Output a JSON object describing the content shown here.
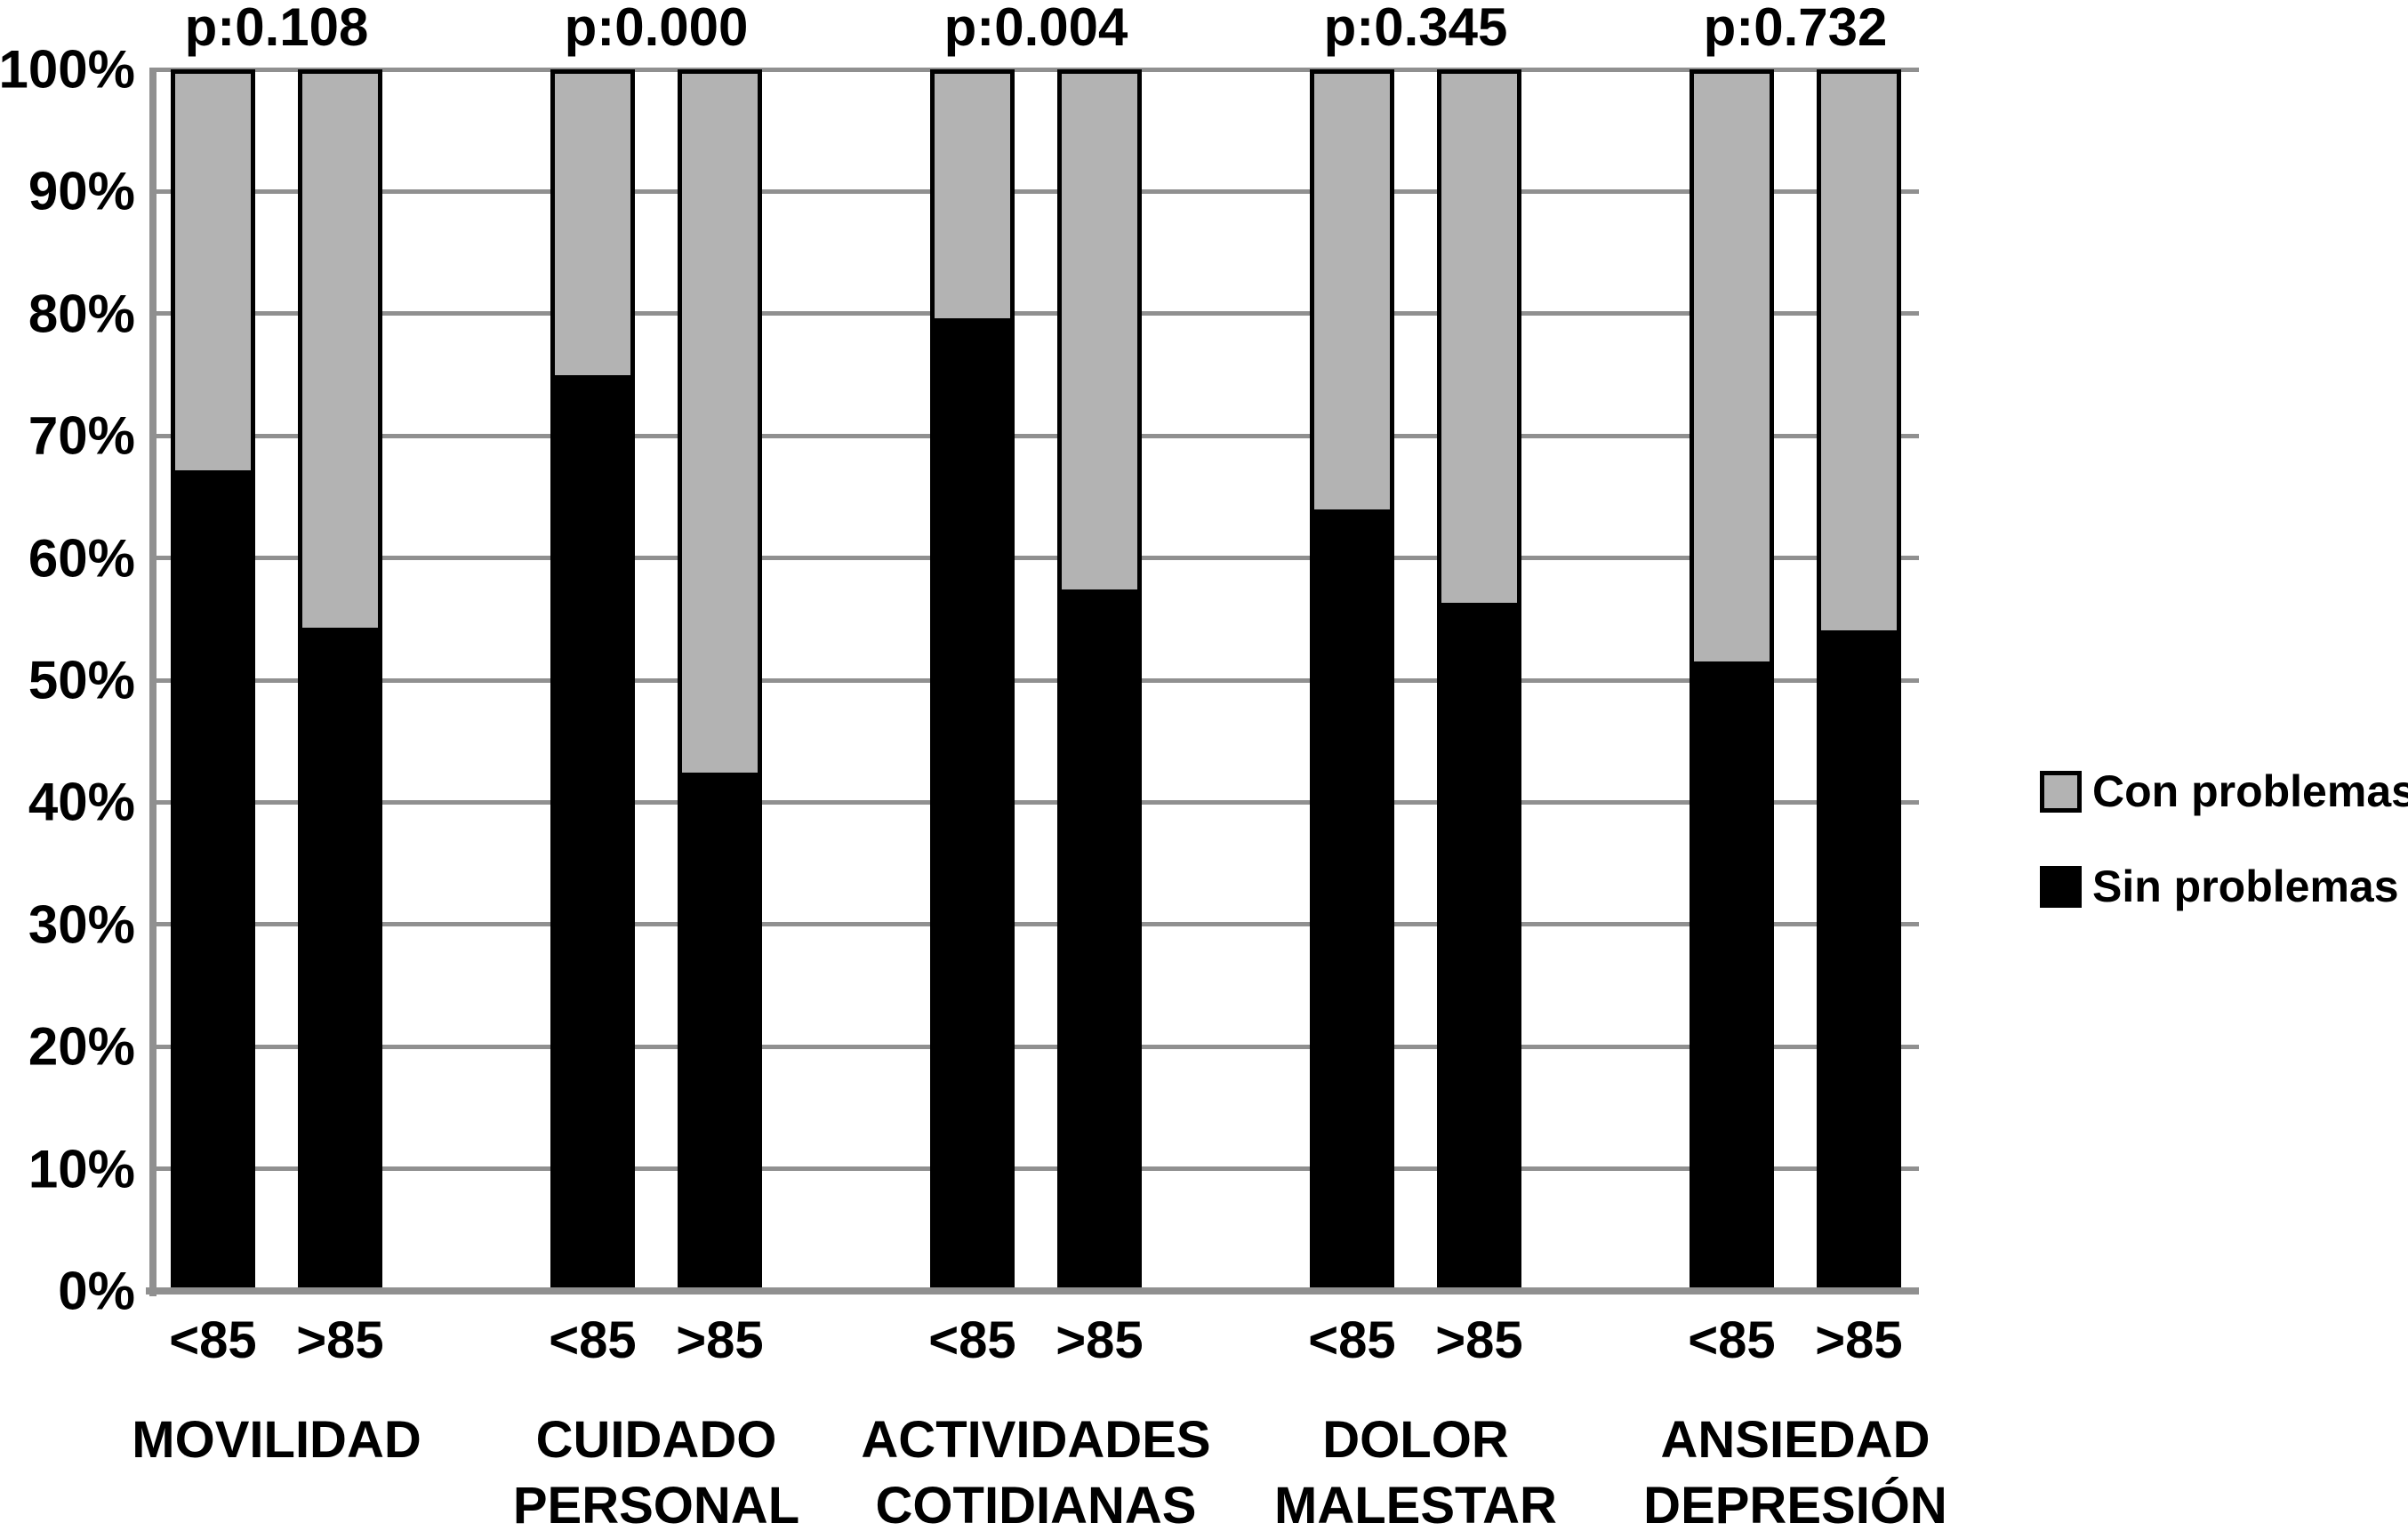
{
  "chart_data": {
    "type": "bar",
    "subtype": "stacked-100-percent",
    "title": "",
    "grid": true,
    "legend_position": "right-middle",
    "y_axis": {
      "min": 0,
      "max": 100,
      "step": 10,
      "unit": "%",
      "tick_labels": [
        "0%",
        "10%",
        "20%",
        "30%",
        "40%",
        "50%",
        "60%",
        "70%",
        "80%",
        "90%",
        "100%"
      ]
    },
    "legend": [
      {
        "label": "Con problemas",
        "color": "#b3b3b3"
      },
      {
        "label": "Sin problemas",
        "color": "#000000"
      }
    ],
    "colors": {
      "con_fill": "#b3b3b3",
      "sin_fill": "#000000",
      "bar_border": "#000000",
      "gridline": "#909090",
      "axis": "#909090",
      "text": "#000000",
      "background": "#ffffff"
    },
    "groups": [
      {
        "label_lines": [
          "MOVILIDAD"
        ],
        "p_value": "p:0.108",
        "bars": [
          {
            "tick": "<85",
            "sin_problemas": 67.2,
            "con_problemas": 32.8
          },
          {
            "tick": ">85",
            "sin_problemas": 54.3,
            "con_problemas": 45.7
          }
        ]
      },
      {
        "label_lines": [
          "CUIDADO",
          "PERSONAL"
        ],
        "p_value": "p:0.000",
        "bars": [
          {
            "tick": "<85",
            "sin_problemas": 75.0,
            "con_problemas": 25.0
          },
          {
            "tick": ">85",
            "sin_problemas": 42.4,
            "con_problemas": 57.6
          }
        ]
      },
      {
        "label_lines": [
          "ACTIVIDADES",
          "COTIDIANAS"
        ],
        "p_value": "p:0.004",
        "bars": [
          {
            "tick": "<85",
            "sin_problemas": 79.6,
            "con_problemas": 20.4
          },
          {
            "tick": ">85",
            "sin_problemas": 57.4,
            "con_problemas": 42.6
          }
        ]
      },
      {
        "label_lines": [
          "DOLOR",
          "MALESTAR"
        ],
        "p_value": "p:0.345",
        "bars": [
          {
            "tick": "<85",
            "sin_problemas": 64.0,
            "con_problemas": 36.0
          },
          {
            "tick": ">85",
            "sin_problemas": 56.3,
            "con_problemas": 43.7
          }
        ]
      },
      {
        "label_lines": [
          "ANSIEDAD",
          "DEPRESIÓN"
        ],
        "p_value": "p:0.732",
        "bars": [
          {
            "tick": "<85",
            "sin_problemas": 51.5,
            "con_problemas": 48.5
          },
          {
            "tick": ">85",
            "sin_problemas": 54.1,
            "con_problemas": 45.9
          }
        ]
      }
    ]
  }
}
